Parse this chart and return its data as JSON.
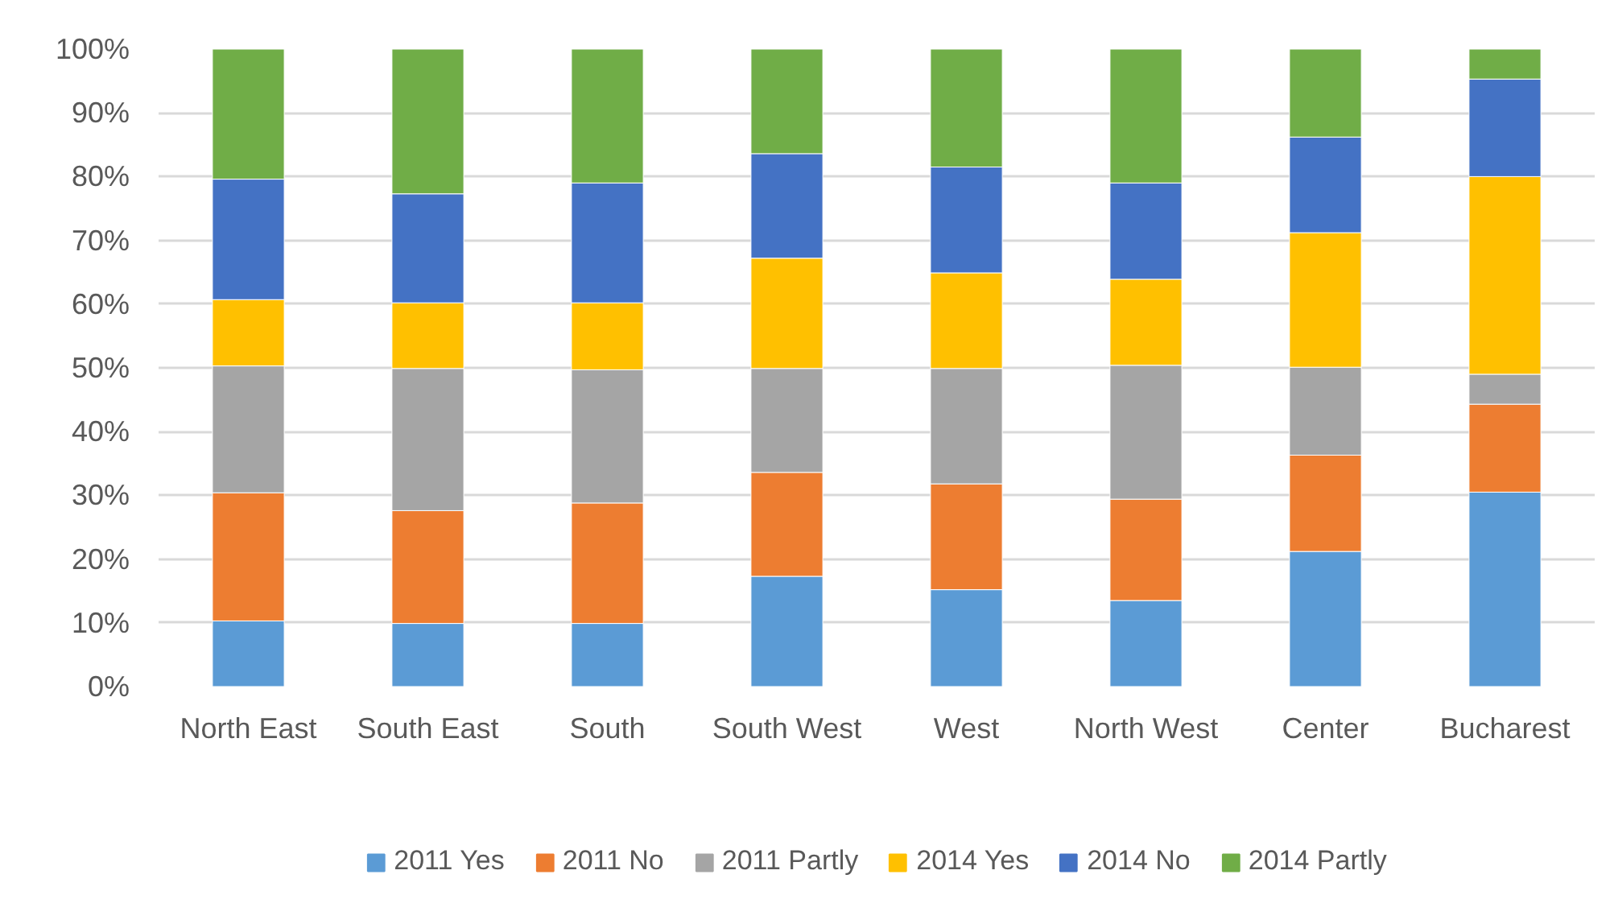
{
  "chart_data": {
    "type": "bar",
    "stacked": true,
    "categories": [
      "North East",
      "South East",
      "South",
      "South West",
      "West",
      "North West",
      "Center",
      "Bucharest"
    ],
    "series": [
      {
        "name": "2011 Yes",
        "color": "#5b9bd5",
        "values": [
          10.3,
          9.9,
          9.9,
          17.3,
          15.2,
          13.5,
          21.2,
          30.5
        ]
      },
      {
        "name": "2011 No",
        "color": "#ed7d31",
        "values": [
          20.1,
          17.7,
          18.9,
          16.3,
          16.6,
          15.9,
          15.1,
          13.8
        ]
      },
      {
        "name": "2011 Partly",
        "color": "#a5a5a5",
        "values": [
          19.9,
          22.3,
          20.9,
          16.3,
          18.1,
          21.0,
          13.8,
          4.7
        ]
      },
      {
        "name": "2014 Yes",
        "color": "#ffc000",
        "values": [
          10.4,
          10.3,
          10.5,
          17.3,
          15.0,
          13.5,
          21.1,
          31.0
        ]
      },
      {
        "name": "2014 No",
        "color": "#4472c4",
        "values": [
          18.9,
          17.1,
          18.8,
          16.4,
          16.6,
          15.1,
          15.0,
          15.3
        ]
      },
      {
        "name": "2014 Partly",
        "color": "#70ad47",
        "values": [
          20.4,
          22.7,
          21.0,
          16.4,
          18.5,
          21.0,
          13.8,
          4.7
        ]
      }
    ],
    "ylim": [
      0,
      100
    ],
    "yticks": [
      {
        "value": 0,
        "label": "0%"
      },
      {
        "value": 10,
        "label": "10%"
      },
      {
        "value": 20,
        "label": "20%"
      },
      {
        "value": 30,
        "label": "30%"
      },
      {
        "value": 40,
        "label": "40%"
      },
      {
        "value": 50,
        "label": "50%"
      },
      {
        "value": 60,
        "label": "60%"
      },
      {
        "value": 70,
        "label": "70%"
      },
      {
        "value": 80,
        "label": "80%"
      },
      {
        "value": 90,
        "label": "90%"
      },
      {
        "value": 100,
        "label": "100%"
      }
    ],
    "grid": "y",
    "legend": "bottom"
  }
}
